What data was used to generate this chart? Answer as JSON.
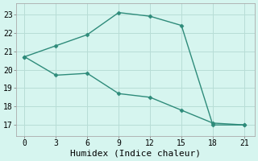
{
  "line1_x": [
    0,
    3,
    6,
    9,
    12,
    15,
    18,
    21
  ],
  "line1_y": [
    20.7,
    21.3,
    21.9,
    23.1,
    22.9,
    22.4,
    17.0,
    17.0
  ],
  "line2_x": [
    0,
    3,
    6,
    9,
    12,
    15,
    18,
    21
  ],
  "line2_y": [
    20.7,
    19.7,
    19.8,
    18.7,
    18.5,
    17.8,
    17.1,
    17.0
  ],
  "line_color": "#2e8b7a",
  "bg_color": "#d6f5ef",
  "grid_color": "#b8ddd6",
  "xlabel": "Humidex (Indice chaleur)",
  "xlabel_fontsize": 8,
  "tick_fontsize": 7,
  "xticks": [
    0,
    3,
    6,
    9,
    12,
    15,
    18,
    21
  ],
  "yticks": [
    17,
    18,
    19,
    20,
    21,
    22,
    23
  ],
  "ylim": [
    16.4,
    23.6
  ],
  "xlim": [
    -0.8,
    22.0
  ]
}
